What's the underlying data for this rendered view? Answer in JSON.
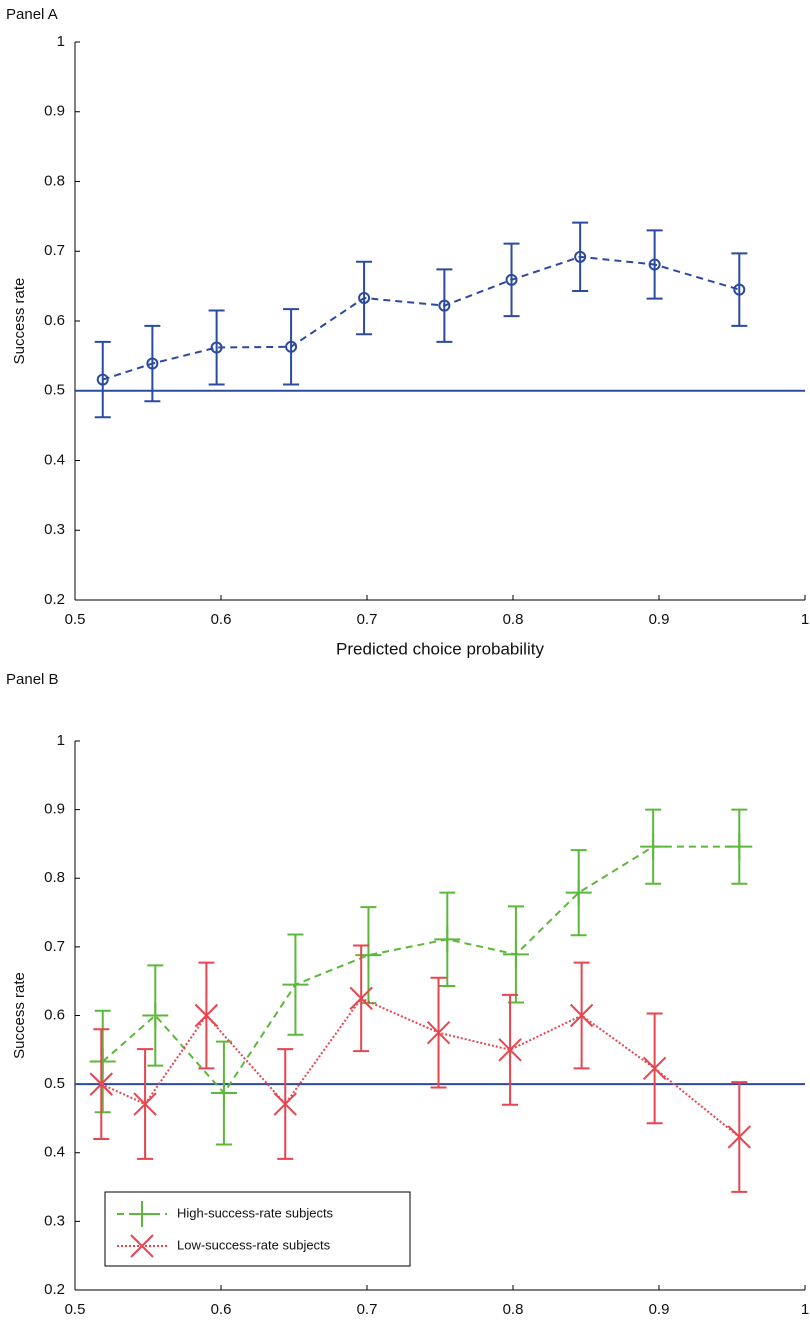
{
  "chart_data": [
    {
      "type": "line",
      "title": "Panel A",
      "xlabel": "Predicted choice probability",
      "ylabel": "Success rate",
      "xlim": [
        0.5,
        1
      ],
      "xticks": [
        0.5,
        0.6,
        0.7,
        0.8,
        0.9,
        1
      ],
      "ylim": [
        0.2,
        1
      ],
      "yticks": [
        0.2,
        0.3,
        0.4,
        0.5,
        0.6,
        0.7,
        0.8,
        0.9,
        1
      ],
      "hline": 0.5,
      "hline_color": "#2b4aa0",
      "series": [
        {
          "color": "#2b4aa0",
          "linestyle": "dashed",
          "marker": "circle",
          "x": [
            0.519,
            0.553,
            0.597,
            0.648,
            0.698,
            0.753,
            0.799,
            0.846,
            0.897,
            0.955
          ],
          "values": [
            0.516,
            0.539,
            0.562,
            0.563,
            0.633,
            0.622,
            0.659,
            0.692,
            0.681,
            0.645
          ],
          "errors": [
            0.054,
            0.054,
            0.053,
            0.054,
            0.052,
            0.052,
            0.052,
            0.049,
            0.049,
            0.052
          ]
        }
      ]
    },
    {
      "type": "line",
      "title": "Panel B",
      "ylabel": "Success rate",
      "xlim": [
        0.5,
        1
      ],
      "xticks": [
        0.5,
        0.6,
        0.7,
        0.8,
        0.9,
        1
      ],
      "ylim": [
        0.2,
        1
      ],
      "yticks": [
        0.2,
        0.3,
        0.4,
        0.5,
        0.6,
        0.7,
        0.8,
        0.9,
        1
      ],
      "hline": 0.5,
      "hline_color": "#2b4aa0",
      "legend": "lower left",
      "series": [
        {
          "name": "High-success-rate subjects",
          "color": "#5cb83a",
          "linestyle": "dashed",
          "marker": "plus",
          "x": [
            0.519,
            0.555,
            0.602,
            0.651,
            0.701,
            0.755,
            0.802,
            0.845,
            0.896,
            0.955
          ],
          "values": [
            0.533,
            0.6,
            0.487,
            0.645,
            0.688,
            0.711,
            0.689,
            0.779,
            0.846,
            0.846
          ],
          "errors": [
            0.074,
            0.073,
            0.075,
            0.073,
            0.07,
            0.068,
            0.07,
            0.062,
            0.054,
            0.054
          ]
        },
        {
          "name": "Low-success-rate subjects",
          "color": "#e8454f",
          "linestyle": "dotted",
          "marker": "x",
          "x": [
            0.518,
            0.548,
            0.59,
            0.644,
            0.696,
            0.749,
            0.798,
            0.847,
            0.897,
            0.955
          ],
          "values": [
            0.5,
            0.471,
            0.6,
            0.471,
            0.625,
            0.575,
            0.55,
            0.6,
            0.523,
            0.423
          ],
          "errors": [
            0.08,
            0.08,
            0.077,
            0.08,
            0.077,
            0.08,
            0.08,
            0.077,
            0.08,
            0.08
          ]
        }
      ]
    }
  ]
}
